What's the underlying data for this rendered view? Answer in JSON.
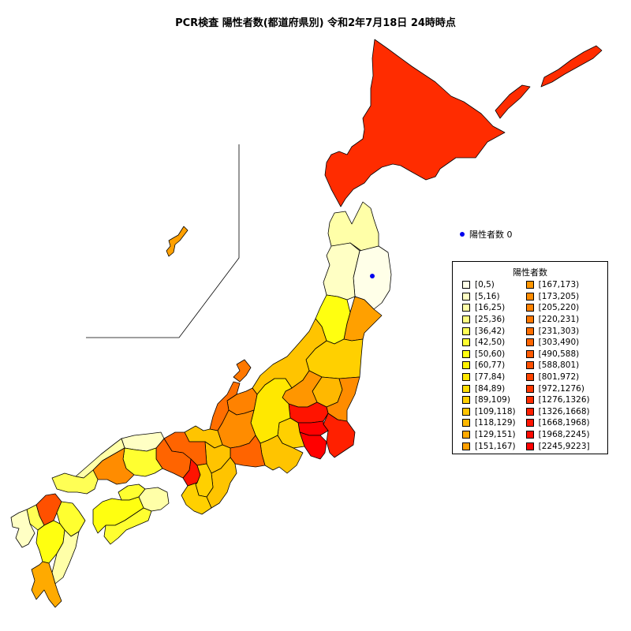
{
  "title": "PCR検査 陽性者数(都道府県別) 令和2年7月18日 24時時点",
  "zero_marker": {
    "label": "陽性者数 0",
    "color": "#0000ee"
  },
  "legend": {
    "title": "陽性者数",
    "items": [
      {
        "label": "[0,5)",
        "color": "#ffffe8"
      },
      {
        "label": "[5,16)",
        "color": "#ffffc4"
      },
      {
        "label": "[16,25)",
        "color": "#ffffa8"
      },
      {
        "label": "[25,36)",
        "color": "#ffff80"
      },
      {
        "label": "[36,42)",
        "color": "#ffff55"
      },
      {
        "label": "[42,50)",
        "color": "#ffff30"
      },
      {
        "label": "[50,60)",
        "color": "#ffff10"
      },
      {
        "label": "[60,77)",
        "color": "#fff200"
      },
      {
        "label": "[77,84)",
        "color": "#ffe800"
      },
      {
        "label": "[84,89)",
        "color": "#ffdd00"
      },
      {
        "label": "[89,109)",
        "color": "#ffd000"
      },
      {
        "label": "[109,118)",
        "color": "#ffc400"
      },
      {
        "label": "[118,129)",
        "color": "#ffb800"
      },
      {
        "label": "[129,151)",
        "color": "#ffaa00"
      },
      {
        "label": "[151,167)",
        "color": "#ffa000"
      },
      {
        "label": "[167,173)",
        "color": "#ff9600"
      },
      {
        "label": "[173,205)",
        "color": "#ff8c00"
      },
      {
        "label": "[205,220)",
        "color": "#ff8200"
      },
      {
        "label": "[220,231)",
        "color": "#ff7800"
      },
      {
        "label": "[231,303)",
        "color": "#ff6e00"
      },
      {
        "label": "[303,490)",
        "color": "#ff6400"
      },
      {
        "label": "[490,588)",
        "color": "#ff5a00"
      },
      {
        "label": "[588,801)",
        "color": "#ff5000"
      },
      {
        "label": "[801,972)",
        "color": "#ff4400"
      },
      {
        "label": "[972,1276)",
        "color": "#ff3800"
      },
      {
        "label": "[1276,1326)",
        "color": "#ff2c00"
      },
      {
        "label": "[1326,1668)",
        "color": "#ff2000"
      },
      {
        "label": "[1668,1968)",
        "color": "#ff1400"
      },
      {
        "label": "[1968,2245)",
        "color": "#ff0a00"
      },
      {
        "label": "[2245,9223]",
        "color": "#ff0000"
      }
    ]
  },
  "prefectures": [
    {
      "name": "hokkaido",
      "color": "#ff2c00"
    },
    {
      "name": "aomori",
      "color": "#ffffa8"
    },
    {
      "name": "iwate",
      "color": "#ffffe8"
    },
    {
      "name": "akita",
      "color": "#ffffc4"
    },
    {
      "name": "miyagi",
      "color": "#ffa000"
    },
    {
      "name": "yamagata",
      "color": "#ffff10"
    },
    {
      "name": "fukushima",
      "color": "#ffd000"
    },
    {
      "name": "niigata",
      "color": "#ffc400"
    },
    {
      "name": "sado",
      "color": "#ff7800"
    },
    {
      "name": "tochigi",
      "color": "#ffb800"
    },
    {
      "name": "ibaraki",
      "color": "#ff8c00"
    },
    {
      "name": "gunma",
      "color": "#ff9600"
    },
    {
      "name": "saitama",
      "color": "#ff1400"
    },
    {
      "name": "chiba",
      "color": "#ff2000"
    },
    {
      "name": "tokyo",
      "color": "#ff0000"
    },
    {
      "name": "kanagawa",
      "color": "#ff0000"
    },
    {
      "name": "yamanashi",
      "color": "#ffd000"
    },
    {
      "name": "nagano",
      "color": "#ffe800"
    },
    {
      "name": "toyama",
      "color": "#ff8200"
    },
    {
      "name": "ishikawa",
      "color": "#ff6e00"
    },
    {
      "name": "gifu",
      "color": "#ff8c00"
    },
    {
      "name": "shizuoka",
      "color": "#ffc400"
    },
    {
      "name": "aichi",
      "color": "#ff6400"
    },
    {
      "name": "fukui",
      "color": "#ffc400"
    },
    {
      "name": "shiga",
      "color": "#ffc400"
    },
    {
      "name": "mie",
      "color": "#ffc400"
    },
    {
      "name": "kyoto",
      "color": "#ff6400"
    },
    {
      "name": "osaka",
      "color": "#ff1400"
    },
    {
      "name": "hyogo",
      "color": "#ff6400"
    },
    {
      "name": "nara",
      "color": "#ffd000"
    },
    {
      "name": "wakayama",
      "color": "#ffd000"
    },
    {
      "name": "tottori",
      "color": "#ffffc4"
    },
    {
      "name": "shimane",
      "color": "#ffffa8"
    },
    {
      "name": "okayama",
      "color": "#ffff30"
    },
    {
      "name": "hiroshima",
      "color": "#ff8c00"
    },
    {
      "name": "yamaguchi",
      "color": "#ffff55"
    },
    {
      "name": "tokushima",
      "color": "#ffffa8"
    },
    {
      "name": "kagawa",
      "color": "#ffff30"
    },
    {
      "name": "ehime",
      "color": "#ffff10"
    },
    {
      "name": "kochi",
      "color": "#ffff30"
    },
    {
      "name": "fukuoka",
      "color": "#ff5000"
    },
    {
      "name": "saga",
      "color": "#ffff55"
    },
    {
      "name": "nagasaki",
      "color": "#ffffc4"
    },
    {
      "name": "kumamoto",
      "color": "#ffff10"
    },
    {
      "name": "oita",
      "color": "#ffff30"
    },
    {
      "name": "miyazaki",
      "color": "#ffffa8"
    },
    {
      "name": "kagoshima",
      "color": "#ffaa00"
    },
    {
      "name": "okinawa",
      "color": "#ffa000"
    }
  ]
}
